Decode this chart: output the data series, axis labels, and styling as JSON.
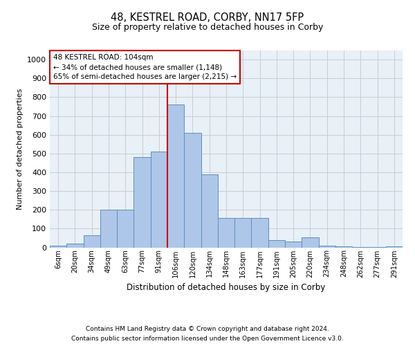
{
  "title1": "48, KESTREL ROAD, CORBY, NN17 5FP",
  "title2": "Size of property relative to detached houses in Corby",
  "xlabel": "Distribution of detached houses by size in Corby",
  "ylabel": "Number of detached properties",
  "categories": [
    "6sqm",
    "20sqm",
    "34sqm",
    "49sqm",
    "63sqm",
    "77sqm",
    "91sqm",
    "106sqm",
    "120sqm",
    "134sqm",
    "148sqm",
    "163sqm",
    "177sqm",
    "191sqm",
    "205sqm",
    "220sqm",
    "234sqm",
    "248sqm",
    "262sqm",
    "277sqm",
    "291sqm"
  ],
  "values": [
    10,
    20,
    65,
    200,
    200,
    480,
    510,
    760,
    610,
    390,
    155,
    155,
    155,
    40,
    30,
    55,
    10,
    5,
    2,
    2,
    5
  ],
  "bar_color": "#aec6e8",
  "bar_edge_color": "#5b8fbe",
  "bar_edge_width": 0.7,
  "red_line_index": 7,
  "annotation_line1": "48 KESTREL ROAD: 104sqm",
  "annotation_line2": "← 34% of detached houses are smaller (1,148)",
  "annotation_line3": "65% of semi-detached houses are larger (2,215) →",
  "annotation_box_color": "#ffffff",
  "annotation_box_edge": "#cc0000",
  "red_line_color": "#cc0000",
  "ylim": [
    0,
    1050
  ],
  "yticks": [
    0,
    100,
    200,
    300,
    400,
    500,
    600,
    700,
    800,
    900,
    1000
  ],
  "grid_color": "#cccccc",
  "bg_color": "#e8f0f8",
  "footer1": "Contains HM Land Registry data © Crown copyright and database right 2024.",
  "footer2": "Contains public sector information licensed under the Open Government Licence v3.0."
}
